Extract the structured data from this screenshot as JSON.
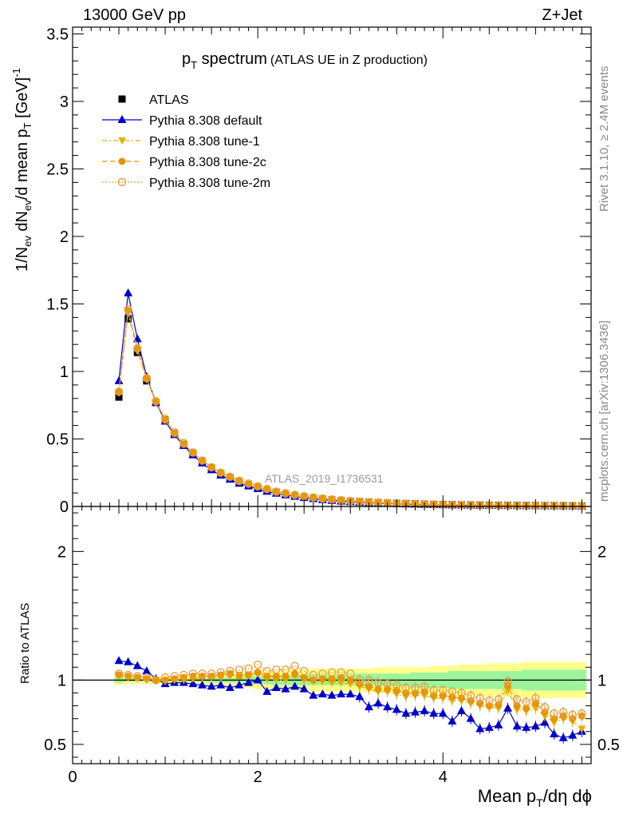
{
  "header": {
    "left": "13000 GeV pp",
    "right": "Z+Jet"
  },
  "title": {
    "main_pre": "p",
    "main_sub": "T",
    "main_post": " spectrum",
    "paren": "(ATLAS UE in Z production)"
  },
  "watermark": "ATLAS_2019_I1736531",
  "side_labels": {
    "rivet": "Rivet 3.1.10, ≥ 2.4M events",
    "mcplots": "mcplots.cern.ch [arXiv:1306.3436]"
  },
  "ylabel_top": {
    "p1": "1/N",
    "s1": "ev",
    "p2": " dN",
    "s2": "ev",
    "p3": "/d mean p",
    "s3": "T",
    "p4": " [GeV]",
    "sup": "-1"
  },
  "ylabel_bottom": "Ratio to ATLAS",
  "xlabel": {
    "p1": "Mean p",
    "s1": "T",
    "p2": "/dη dϕ"
  },
  "legend": [
    {
      "label": "ATLAS",
      "color": "#000000"
    },
    {
      "label": "Pythia 8.308 default",
      "color": "#0000cc"
    },
    {
      "label": "Pythia 8.308 tune-1",
      "color": "#e6b000"
    },
    {
      "label": "Pythia 8.308 tune-2c",
      "color": "#e69500"
    },
    {
      "label": "Pythia 8.308 tune-2m",
      "color": "#e6a040"
    }
  ],
  "chart_data": {
    "type": "line",
    "x": [
      0.5,
      0.6,
      0.7,
      0.8,
      0.9,
      1.0,
      1.1,
      1.2,
      1.3,
      1.4,
      1.5,
      1.6,
      1.7,
      1.8,
      1.9,
      2.0,
      2.1,
      2.2,
      2.3,
      2.4,
      2.5,
      2.6,
      2.7,
      2.8,
      2.9,
      3.0,
      3.1,
      3.2,
      3.3,
      3.4,
      3.5,
      3.6,
      3.7,
      3.8,
      3.9,
      4.0,
      4.1,
      4.2,
      4.3,
      4.4,
      4.5,
      4.6,
      4.7,
      4.8,
      4.9,
      5.0,
      5.1,
      5.2,
      5.3,
      5.4,
      5.5
    ],
    "top_panel": {
      "xlim": [
        0,
        5.6
      ],
      "ylim": [
        0,
        3.55
      ],
      "yticks": [
        "0",
        "0.5",
        "1",
        "1.5",
        "2",
        "2.5",
        "3",
        "3.5"
      ],
      "series": [
        {
          "name": "ATLAS",
          "values": [
            0.81,
            1.39,
            1.14,
            0.93,
            0.77,
            0.64,
            0.54,
            0.46,
            0.39,
            0.33,
            0.28,
            0.24,
            0.21,
            0.18,
            0.155,
            0.135,
            0.118,
            0.103,
            0.09,
            0.079,
            0.07,
            0.062,
            0.055,
            0.049,
            0.044,
            0.039,
            0.035,
            0.031,
            0.028,
            0.025,
            0.023,
            0.021,
            0.019,
            0.017,
            0.015,
            0.014,
            0.013,
            0.012,
            0.011,
            0.01,
            0.009,
            0.0085,
            0.008,
            0.0075,
            0.007,
            0.0065,
            0.006,
            0.0055,
            0.005,
            0.0045,
            0.004
          ]
        },
        {
          "name": "Pythia 8.308 default",
          "values": [
            0.93,
            1.58,
            1.24,
            0.96,
            0.77,
            0.63,
            0.53,
            0.45,
            0.38,
            0.32,
            0.27,
            0.23,
            0.2,
            0.17,
            0.15,
            0.13,
            0.11,
            0.096,
            0.084,
            0.073,
            0.064,
            0.056,
            0.049,
            0.043,
            0.038,
            0.034,
            0.03,
            0.027,
            0.024,
            0.021,
            0.019,
            0.017,
            0.015,
            0.013,
            0.012,
            0.011,
            0.0095,
            0.0085,
            0.0078,
            0.0068,
            0.0063,
            0.0058,
            0.0053,
            0.0049,
            0.0045,
            0.0041,
            0.0038,
            0.0034,
            0.0031,
            0.0028,
            0.0025
          ]
        },
        {
          "name": "Pythia 8.308 tune-1",
          "values": [
            0.84,
            1.43,
            1.15,
            0.94,
            0.77,
            0.64,
            0.54,
            0.46,
            0.4,
            0.34,
            0.29,
            0.25,
            0.22,
            0.19,
            0.165,
            0.145,
            0.125,
            0.11,
            0.095,
            0.083,
            0.073,
            0.065,
            0.057,
            0.05,
            0.045,
            0.04,
            0.035,
            0.031,
            0.028,
            0.025,
            0.022,
            0.02,
            0.018,
            0.016,
            0.014,
            0.013,
            0.012,
            0.011,
            0.01,
            0.009,
            0.008,
            0.0075,
            0.007,
            0.0065,
            0.006,
            0.0055,
            0.005,
            0.0045,
            0.004,
            0.0035,
            0.003
          ]
        },
        {
          "name": "Pythia 8.308 tune-2c",
          "values": [
            0.85,
            1.45,
            1.17,
            0.95,
            0.78,
            0.64,
            0.54,
            0.46,
            0.4,
            0.34,
            0.29,
            0.25,
            0.22,
            0.19,
            0.165,
            0.145,
            0.125,
            0.11,
            0.096,
            0.084,
            0.074,
            0.065,
            0.057,
            0.05,
            0.045,
            0.04,
            0.035,
            0.031,
            0.028,
            0.025,
            0.022,
            0.02,
            0.018,
            0.016,
            0.014,
            0.013,
            0.012,
            0.011,
            0.01,
            0.009,
            0.008,
            0.0075,
            0.007,
            0.0065,
            0.006,
            0.0055,
            0.005,
            0.0045,
            0.004,
            0.0035,
            0.003
          ]
        },
        {
          "name": "Pythia 8.308 tune-2m",
          "values": [
            0.85,
            1.46,
            1.17,
            0.95,
            0.78,
            0.65,
            0.55,
            0.47,
            0.4,
            0.34,
            0.29,
            0.25,
            0.22,
            0.19,
            0.17,
            0.15,
            0.13,
            0.11,
            0.098,
            0.086,
            0.076,
            0.067,
            0.059,
            0.052,
            0.046,
            0.041,
            0.036,
            0.032,
            0.029,
            0.026,
            0.023,
            0.021,
            0.019,
            0.017,
            0.015,
            0.014,
            0.012,
            0.011,
            0.01,
            0.0092,
            0.0085,
            0.0078,
            0.0072,
            0.0066,
            0.0061,
            0.0056,
            0.0051,
            0.0046,
            0.0042,
            0.0037,
            0.0033
          ]
        }
      ]
    },
    "ratio_panel": {
      "ylim": [
        0.35,
        2.35
      ],
      "yticks": [
        "0.5",
        "1",
        "2"
      ],
      "xticks": [
        "0",
        "2",
        "4"
      ],
      "band_outer": [
        [
          0.96,
          1.04
        ],
        [
          0.97,
          1.03
        ],
        [
          0.97,
          1.03
        ],
        [
          0.97,
          1.03
        ],
        [
          0.97,
          1.03
        ],
        [
          0.97,
          1.03
        ],
        [
          0.97,
          1.03
        ],
        [
          0.97,
          1.03
        ],
        [
          0.97,
          1.03
        ],
        [
          0.97,
          1.03
        ],
        [
          0.96,
          1.04
        ],
        [
          0.96,
          1.04
        ],
        [
          0.95,
          1.05
        ],
        [
          0.95,
          1.05
        ],
        [
          0.94,
          1.06
        ],
        [
          0.93,
          1.07
        ],
        [
          0.93,
          1.07
        ],
        [
          0.93,
          1.07
        ],
        [
          0.92,
          1.08
        ],
        [
          0.92,
          1.08
        ],
        [
          0.92,
          1.08
        ],
        [
          0.91,
          1.09
        ],
        [
          0.91,
          1.09
        ],
        [
          0.91,
          1.09
        ],
        [
          0.91,
          1.09
        ],
        [
          0.91,
          1.09
        ],
        [
          0.91,
          1.09
        ],
        [
          0.91,
          1.09
        ],
        [
          0.9,
          1.1
        ],
        [
          0.9,
          1.1
        ],
        [
          0.9,
          1.1
        ],
        [
          0.9,
          1.1
        ],
        [
          0.9,
          1.1
        ],
        [
          0.9,
          1.1
        ],
        [
          0.89,
          1.11
        ],
        [
          0.89,
          1.11
        ],
        [
          0.89,
          1.11
        ],
        [
          0.88,
          1.12
        ],
        [
          0.88,
          1.12
        ],
        [
          0.88,
          1.12
        ],
        [
          0.87,
          1.13
        ],
        [
          0.87,
          1.13
        ],
        [
          0.87,
          1.13
        ],
        [
          0.87,
          1.13
        ],
        [
          0.86,
          1.14
        ],
        [
          0.86,
          1.14
        ],
        [
          0.86,
          1.14
        ],
        [
          0.86,
          1.14
        ],
        [
          0.86,
          1.14
        ],
        [
          0.86,
          1.14
        ],
        [
          0.86,
          1.14
        ]
      ],
      "band_inner": [
        [
          0.98,
          1.02
        ],
        [
          0.99,
          1.01
        ],
        [
          0.99,
          1.01
        ],
        [
          0.99,
          1.01
        ],
        [
          0.99,
          1.01
        ],
        [
          0.99,
          1.01
        ],
        [
          0.99,
          1.01
        ],
        [
          0.99,
          1.01
        ],
        [
          0.99,
          1.01
        ],
        [
          0.99,
          1.01
        ],
        [
          0.98,
          1.02
        ],
        [
          0.98,
          1.02
        ],
        [
          0.98,
          1.02
        ],
        [
          0.98,
          1.02
        ],
        [
          0.97,
          1.03
        ],
        [
          0.97,
          1.03
        ],
        [
          0.97,
          1.03
        ],
        [
          0.96,
          1.04
        ],
        [
          0.96,
          1.04
        ],
        [
          0.96,
          1.04
        ],
        [
          0.96,
          1.04
        ],
        [
          0.96,
          1.04
        ],
        [
          0.96,
          1.04
        ],
        [
          0.96,
          1.04
        ],
        [
          0.96,
          1.04
        ],
        [
          0.96,
          1.04
        ],
        [
          0.95,
          1.05
        ],
        [
          0.95,
          1.05
        ],
        [
          0.95,
          1.05
        ],
        [
          0.95,
          1.05
        ],
        [
          0.95,
          1.05
        ],
        [
          0.95,
          1.05
        ],
        [
          0.94,
          1.06
        ],
        [
          0.94,
          1.06
        ],
        [
          0.94,
          1.06
        ],
        [
          0.94,
          1.06
        ],
        [
          0.93,
          1.07
        ],
        [
          0.93,
          1.07
        ],
        [
          0.93,
          1.07
        ],
        [
          0.93,
          1.07
        ],
        [
          0.93,
          1.07
        ],
        [
          0.93,
          1.07
        ],
        [
          0.93,
          1.07
        ],
        [
          0.93,
          1.07
        ],
        [
          0.92,
          1.08
        ],
        [
          0.92,
          1.08
        ],
        [
          0.92,
          1.08
        ],
        [
          0.92,
          1.08
        ],
        [
          0.92,
          1.08
        ],
        [
          0.92,
          1.08
        ],
        [
          0.92,
          1.08
        ]
      ],
      "series": [
        {
          "name": "Pythia 8.308 default",
          "values": [
            1.15,
            1.14,
            1.11,
            1.07,
            1.01,
            0.97,
            0.98,
            0.98,
            0.97,
            0.96,
            0.95,
            0.96,
            0.94,
            0.96,
            0.98,
            1.0,
            0.91,
            0.94,
            0.93,
            0.95,
            0.93,
            0.88,
            0.89,
            0.88,
            0.89,
            0.89,
            0.87,
            0.79,
            0.82,
            0.79,
            0.77,
            0.74,
            0.75,
            0.76,
            0.74,
            0.74,
            0.68,
            0.76,
            0.7,
            0.62,
            0.63,
            0.65,
            0.78,
            0.64,
            0.63,
            0.64,
            0.67,
            0.58,
            0.55,
            0.57,
            0.6
          ]
        },
        {
          "name": "Pythia 8.308 tune-1",
          "values": [
            1.03,
            1.02,
            1.01,
            1.0,
            0.99,
            0.99,
            1.0,
            1.0,
            1.01,
            1.02,
            1.02,
            1.02,
            1.03,
            1.04,
            1.04,
            1.05,
            1.01,
            1.0,
            1.0,
            1.03,
            1.0,
            0.99,
            0.99,
            0.98,
            0.98,
            0.97,
            0.95,
            0.93,
            0.91,
            0.91,
            0.89,
            0.87,
            0.88,
            0.88,
            0.86,
            0.86,
            0.84,
            0.84,
            0.82,
            0.8,
            0.79,
            0.78,
            0.92,
            0.77,
            0.76,
            0.78,
            0.72,
            0.67,
            0.7,
            0.68,
            0.62
          ]
        },
        {
          "name": "Pythia 8.308 tune-2c",
          "values": [
            1.04,
            1.03,
            1.02,
            1.01,
            1.0,
            1.0,
            1.01,
            1.02,
            1.03,
            1.03,
            1.03,
            1.04,
            1.05,
            1.03,
            1.04,
            1.06,
            1.03,
            1.03,
            1.03,
            1.05,
            1.02,
            1.0,
            1.01,
            1.01,
            1.02,
            1.0,
            0.97,
            0.95,
            0.93,
            0.93,
            0.92,
            0.9,
            0.9,
            0.91,
            0.88,
            0.88,
            0.87,
            0.86,
            0.84,
            0.82,
            0.8,
            0.81,
            0.96,
            0.8,
            0.78,
            0.82,
            0.75,
            0.7,
            0.72,
            0.7,
            0.72
          ]
        },
        {
          "name": "Pythia 8.308 tune-2m",
          "values": [
            1.05,
            1.04,
            1.03,
            1.02,
            1.0,
            1.02,
            1.03,
            1.04,
            1.05,
            1.05,
            1.05,
            1.06,
            1.07,
            1.08,
            1.09,
            1.12,
            1.07,
            1.08,
            1.08,
            1.11,
            1.07,
            1.04,
            1.05,
            1.06,
            1.06,
            1.05,
            1.0,
            1.0,
            0.98,
            0.97,
            0.96,
            0.94,
            0.94,
            0.95,
            0.92,
            0.92,
            0.91,
            0.9,
            0.88,
            0.86,
            0.84,
            0.85,
            0.99,
            0.85,
            0.83,
            0.86,
            0.79,
            0.74,
            0.75,
            0.73,
            0.74
          ]
        }
      ]
    }
  }
}
